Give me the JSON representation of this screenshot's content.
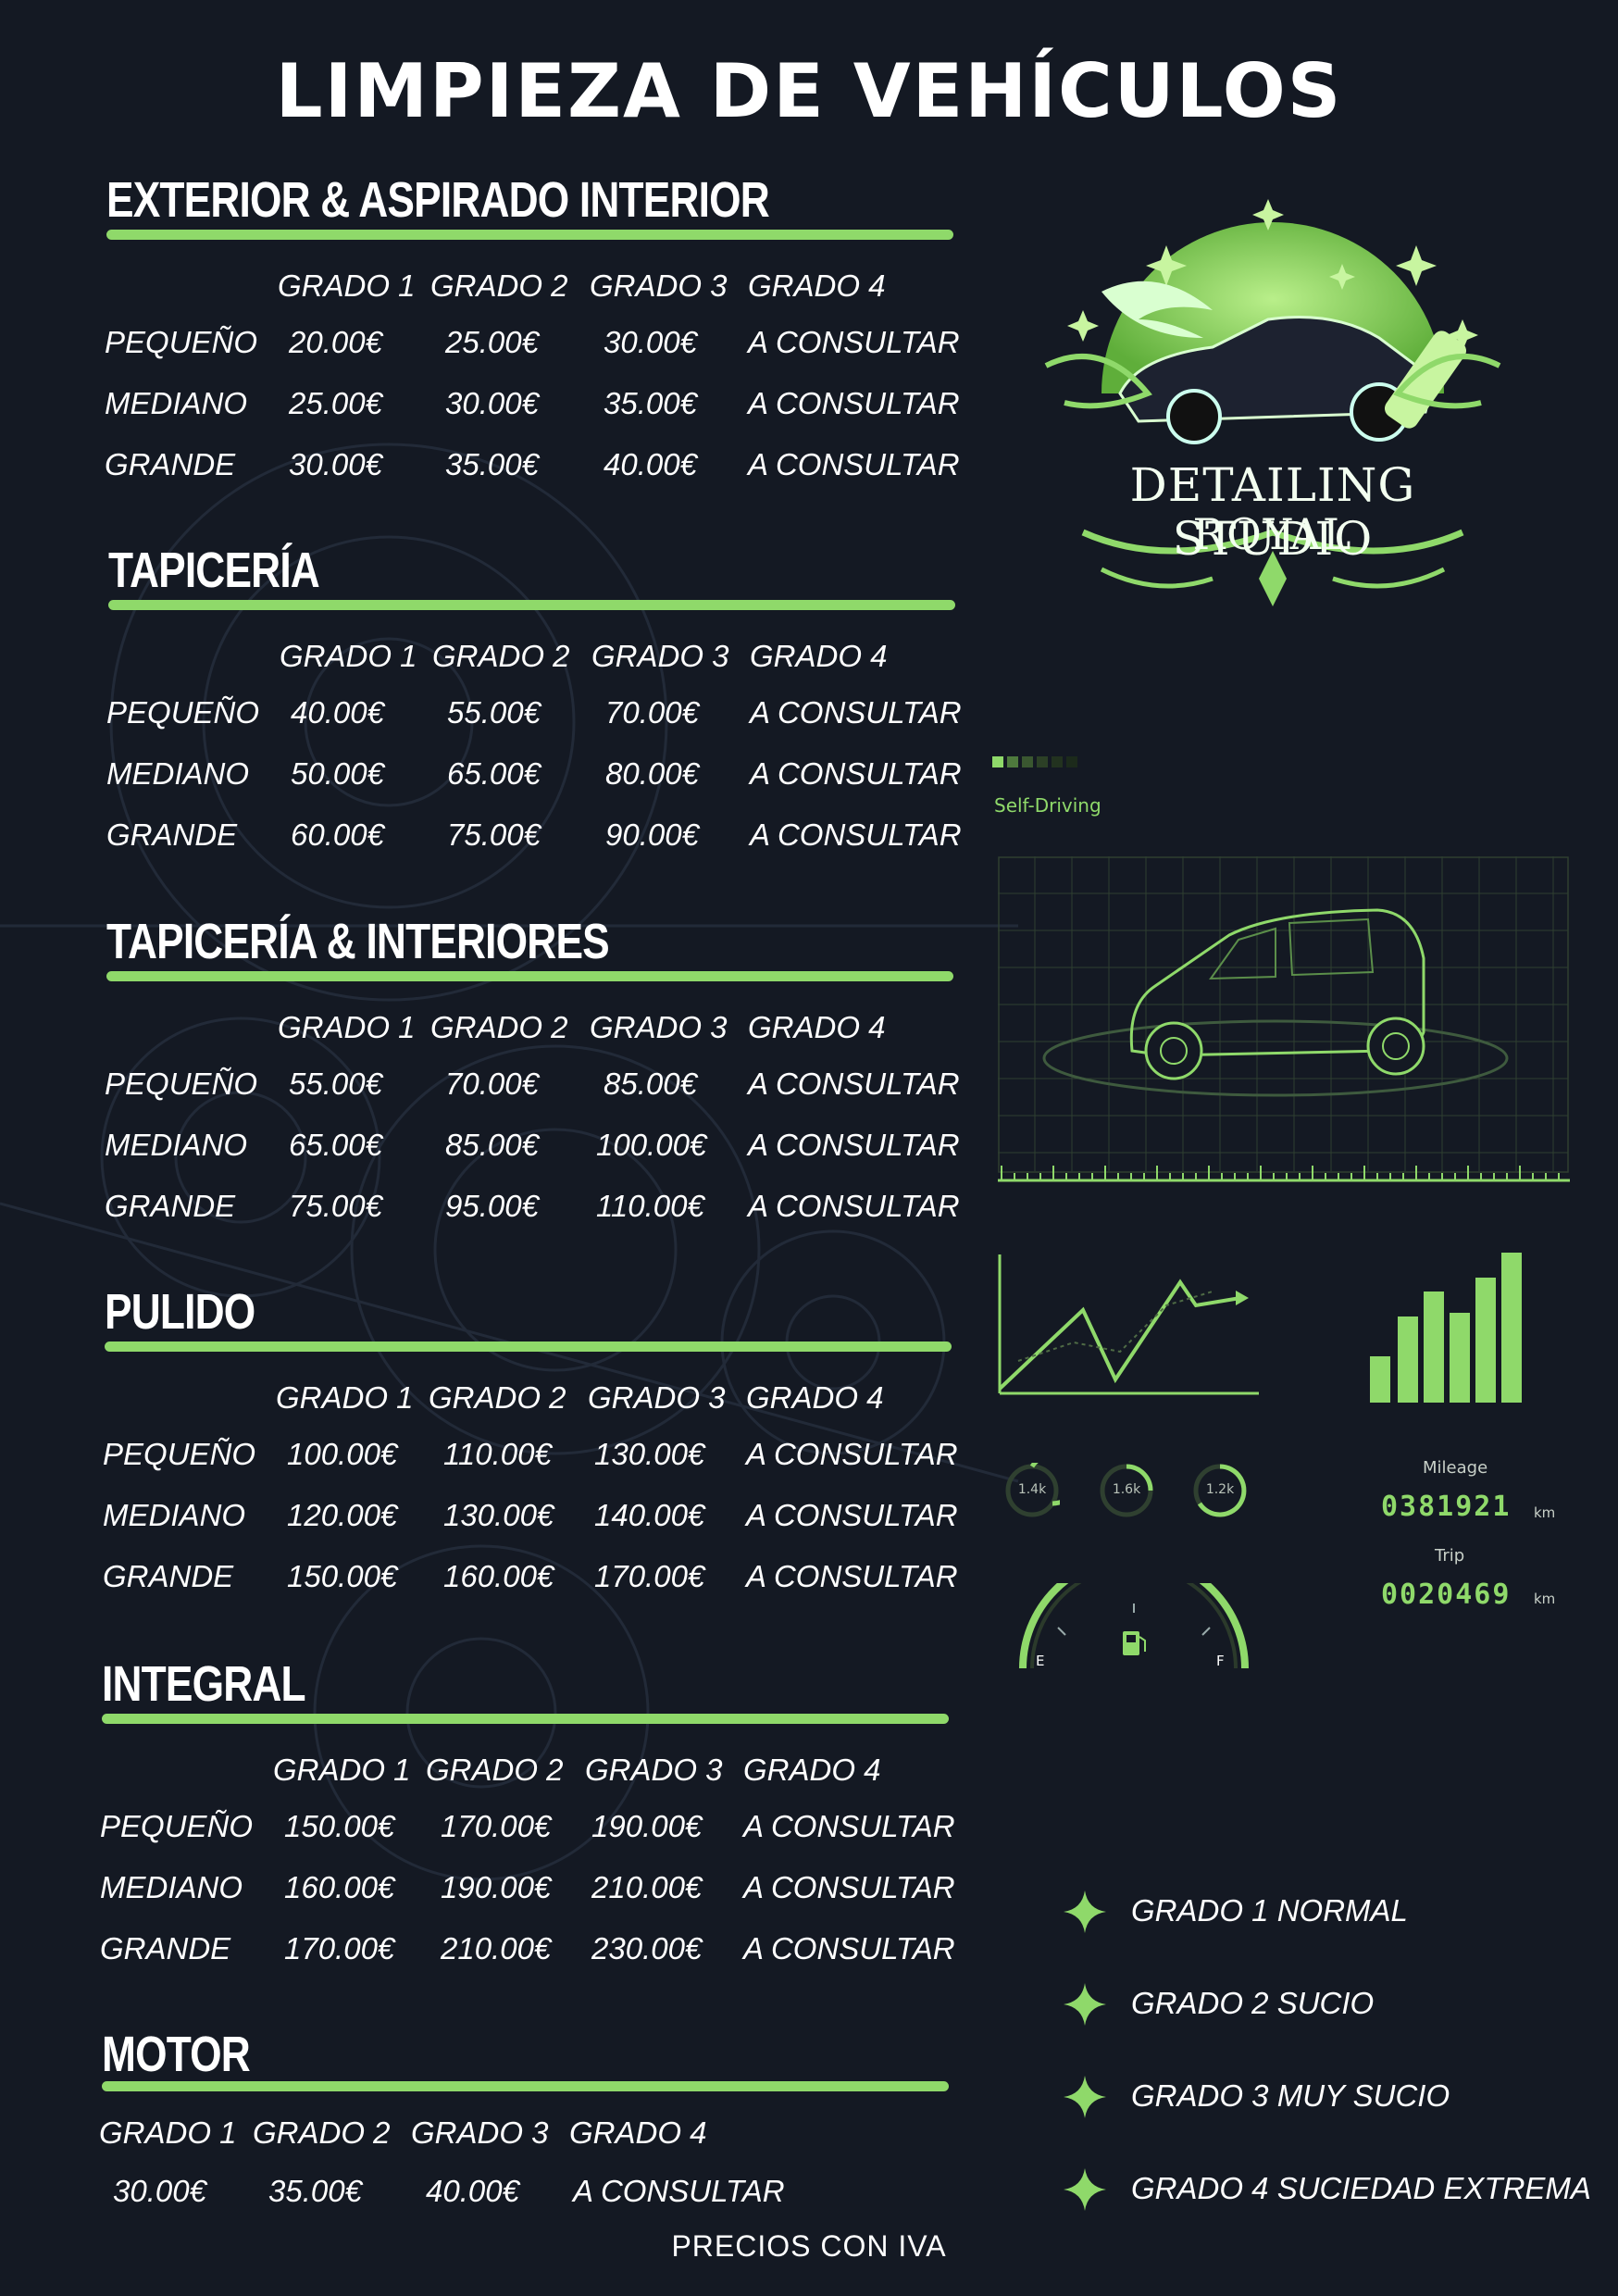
{
  "title": "LIMPIEZA DE VEHÍCULOS",
  "grades": [
    "GRADO 1",
    "GRADO 2",
    "GRADO 3",
    "GRADO 4"
  ],
  "sections": [
    {
      "title": "EXTERIOR & ASPIRADO INTERIOR",
      "rows": [
        {
          "label": "PEQUEÑO",
          "prices": [
            "20.00€",
            "25.00€",
            "30.00€",
            "A CONSULTAR"
          ]
        },
        {
          "label": "MEDIANO",
          "prices": [
            "25.00€",
            "30.00€",
            "35.00€",
            "A CONSULTAR"
          ]
        },
        {
          "label": "GRANDE",
          "prices": [
            "30.00€",
            "35.00€",
            "40.00€",
            "A CONSULTAR"
          ]
        }
      ]
    },
    {
      "title": "TAPICERÍA",
      "rows": [
        {
          "label": "PEQUEÑO",
          "prices": [
            "40.00€",
            "55.00€",
            "70.00€",
            "A CONSULTAR"
          ]
        },
        {
          "label": "MEDIANO",
          "prices": [
            "50.00€",
            "65.00€",
            "80.00€",
            "A CONSULTAR"
          ]
        },
        {
          "label": "GRANDE",
          "prices": [
            "60.00€",
            "75.00€",
            "90.00€",
            "A CONSULTAR"
          ]
        }
      ]
    },
    {
      "title": "TAPICERÍA & INTERIORES",
      "rows": [
        {
          "label": "PEQUEÑO",
          "prices": [
            "55.00€",
            "70.00€",
            "85.00€",
            "A CONSULTAR"
          ]
        },
        {
          "label": "MEDIANO",
          "prices": [
            "65.00€",
            "85.00€",
            "100.00€",
            "A CONSULTAR"
          ]
        },
        {
          "label": "GRANDE",
          "prices": [
            "75.00€",
            "95.00€",
            "110.00€",
            "A CONSULTAR"
          ]
        }
      ]
    },
    {
      "title": "PULIDO",
      "rows": [
        {
          "label": "PEQUEÑO",
          "prices": [
            "100.00€",
            "110.00€",
            "130.00€",
            "A CONSULTAR"
          ]
        },
        {
          "label": "MEDIANO",
          "prices": [
            "120.00€",
            "130.00€",
            "140.00€",
            "A CONSULTAR"
          ]
        },
        {
          "label": "GRANDE",
          "prices": [
            "150.00€",
            "160.00€",
            "170.00€",
            "A CONSULTAR"
          ]
        }
      ]
    },
    {
      "title": "INTEGRAL",
      "rows": [
        {
          "label": "PEQUEÑO",
          "prices": [
            "150.00€",
            "170.00€",
            "190.00€",
            "A CONSULTAR"
          ]
        },
        {
          "label": "MEDIANO",
          "prices": [
            "160.00€",
            "190.00€",
            "210.00€",
            "A CONSULTAR"
          ]
        },
        {
          "label": "GRANDE",
          "prices": [
            "170.00€",
            "210.00€",
            "230.00€",
            "A CONSULTAR"
          ]
        }
      ]
    }
  ],
  "motor": {
    "title": "MOTOR",
    "prices": [
      "30.00€",
      "35.00€",
      "40.00€",
      "A CONSULTAR"
    ]
  },
  "logo": {
    "line1": "DETAILING STUDIO",
    "line2": "ROYAL"
  },
  "dashboard": {
    "self_driving": "Self-Driving",
    "gauges": [
      "1.4k",
      "1.6k",
      "1.2k"
    ],
    "mileage_label": "Mileage",
    "mileage_value": "0381921",
    "mileage_unit": "km",
    "trip_label": "Trip",
    "trip_value": "0020469",
    "trip_unit": "km",
    "fuel_e": "E",
    "fuel_f": "F"
  },
  "legend": [
    "GRADO 1 NORMAL",
    "GRADO 2 SUCIO",
    "GRADO 3 MUY SUCIO",
    "GRADO 4 SUCIEDAD EXTREMA"
  ],
  "footer": "PRECIOS CON IVA",
  "colors": {
    "background": "#141923",
    "accent": "#8fd96a",
    "text": "#ffffff"
  }
}
